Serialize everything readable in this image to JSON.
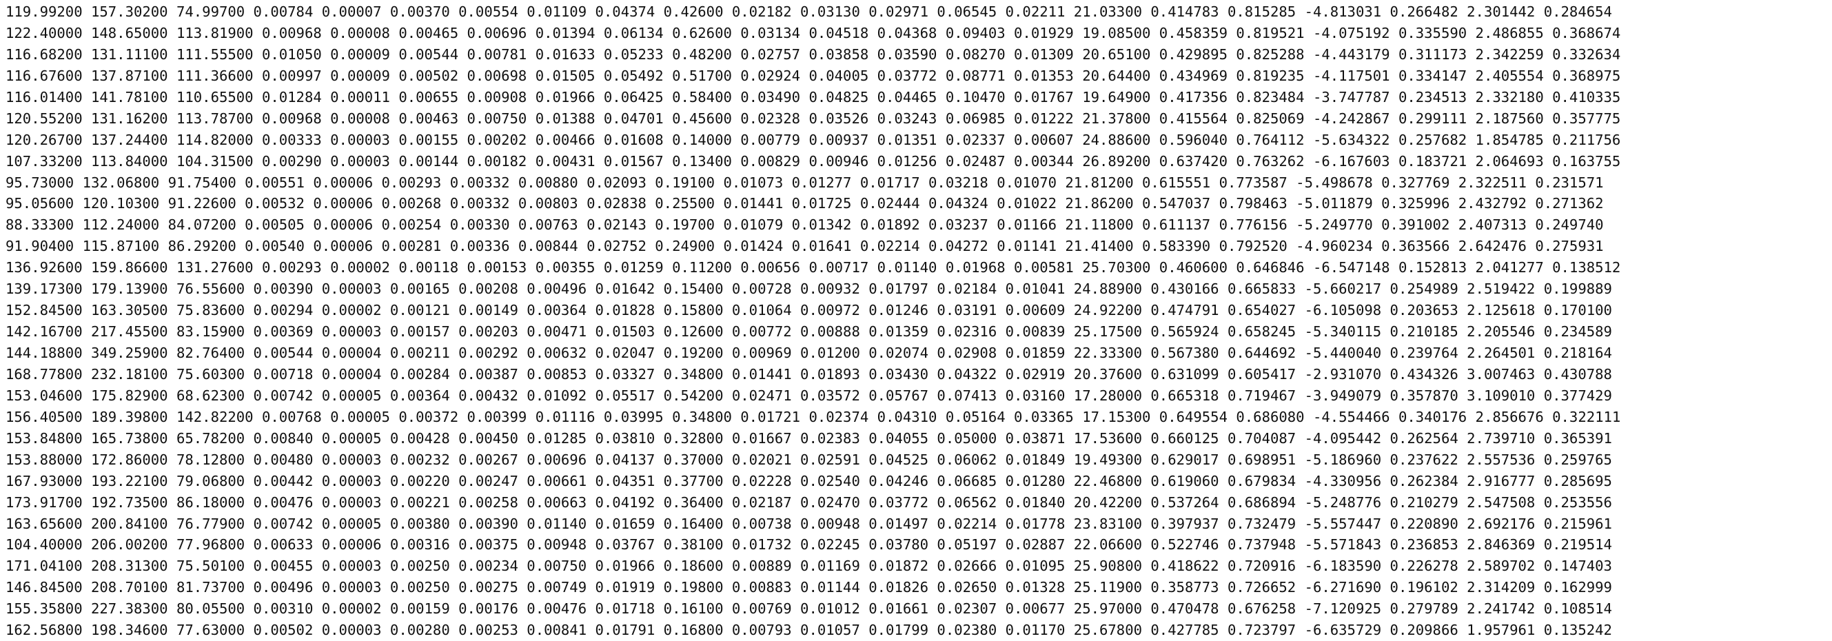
{
  "document": {
    "rows": [
      "119.99200 157.30200 74.99700 0.00784 0.00007 0.00370 0.00554 0.01109 0.04374 0.42600 0.02182 0.03130 0.02971 0.06545 0.02211 21.03300 0.414783 0.815285 -4.813031 0.266482 2.301442 0.284654",
      "122.40000 148.65000 113.81900 0.00968 0.00008 0.00465 0.00696 0.01394 0.06134 0.62600 0.03134 0.04518 0.04368 0.09403 0.01929 19.08500 0.458359 0.819521 -4.075192 0.335590 2.486855 0.368674",
      "116.68200 131.11100 111.55500 0.01050 0.00009 0.00544 0.00781 0.01633 0.05233 0.48200 0.02757 0.03858 0.03590 0.08270 0.01309 20.65100 0.429895 0.825288 -4.443179 0.311173 2.342259 0.332634",
      "116.67600 137.87100 111.36600 0.00997 0.00009 0.00502 0.00698 0.01505 0.05492 0.51700 0.02924 0.04005 0.03772 0.08771 0.01353 20.64400 0.434969 0.819235 -4.117501 0.334147 2.405554 0.368975",
      "116.01400 141.78100 110.65500 0.01284 0.00011 0.00655 0.00908 0.01966 0.06425 0.58400 0.03490 0.04825 0.04465 0.10470 0.01767 19.64900 0.417356 0.823484 -3.747787 0.234513 2.332180 0.410335",
      "120.55200 131.16200 113.78700 0.00968 0.00008 0.00463 0.00750 0.01388 0.04701 0.45600 0.02328 0.03526 0.03243 0.06985 0.01222 21.37800 0.415564 0.825069 -4.242867 0.299111 2.187560 0.357775",
      "120.26700 137.24400 114.82000 0.00333 0.00003 0.00155 0.00202 0.00466 0.01608 0.14000 0.00779 0.00937 0.01351 0.02337 0.00607 24.88600 0.596040 0.764112 -5.634322 0.257682 1.854785 0.211756",
      "107.33200 113.84000 104.31500 0.00290 0.00003 0.00144 0.00182 0.00431 0.01567 0.13400 0.00829 0.00946 0.01256 0.02487 0.00344 26.89200 0.637420 0.763262 -6.167603 0.183721 2.064693 0.163755",
      "95.73000 132.06800 91.75400 0.00551 0.00006 0.00293 0.00332 0.00880 0.02093 0.19100 0.01073 0.01277 0.01717 0.03218 0.01070 21.81200 0.615551 0.773587 -5.498678 0.327769 2.322511 0.231571",
      "95.05600 120.10300 91.22600 0.00532 0.00006 0.00268 0.00332 0.00803 0.02838 0.25500 0.01441 0.01725 0.02444 0.04324 0.01022 21.86200 0.547037 0.798463 -5.011879 0.325996 2.432792 0.271362",
      "88.33300 112.24000 84.07200 0.00505 0.00006 0.00254 0.00330 0.00763 0.02143 0.19700 0.01079 0.01342 0.01892 0.03237 0.01166 21.11800 0.611137 0.776156 -5.249770 0.391002 2.407313 0.249740",
      "91.90400 115.87100 86.29200 0.00540 0.00006 0.00281 0.00336 0.00844 0.02752 0.24900 0.01424 0.01641 0.02214 0.04272 0.01141 21.41400 0.583390 0.792520 -4.960234 0.363566 2.642476 0.275931",
      "136.92600 159.86600 131.27600 0.00293 0.00002 0.00118 0.00153 0.00355 0.01259 0.11200 0.00656 0.00717 0.01140 0.01968 0.00581 25.70300 0.460600 0.646846 -6.547148 0.152813 2.041277 0.138512",
      "139.17300 179.13900 76.55600 0.00390 0.00003 0.00165 0.00208 0.00496 0.01642 0.15400 0.00728 0.00932 0.01797 0.02184 0.01041 24.88900 0.430166 0.665833 -5.660217 0.254989 2.519422 0.199889",
      "152.84500 163.30500 75.83600 0.00294 0.00002 0.00121 0.00149 0.00364 0.01828 0.15800 0.01064 0.00972 0.01246 0.03191 0.00609 24.92200 0.474791 0.654027 -6.105098 0.203653 2.125618 0.170100",
      "142.16700 217.45500 83.15900 0.00369 0.00003 0.00157 0.00203 0.00471 0.01503 0.12600 0.00772 0.00888 0.01359 0.02316 0.00839 25.17500 0.565924 0.658245 -5.340115 0.210185 2.205546 0.234589",
      "144.18800 349.25900 82.76400 0.00544 0.00004 0.00211 0.00292 0.00632 0.02047 0.19200 0.00969 0.01200 0.02074 0.02908 0.01859 22.33300 0.567380 0.644692 -5.440040 0.239764 2.264501 0.218164",
      "168.77800 232.18100 75.60300 0.00718 0.00004 0.00284 0.00387 0.00853 0.03327 0.34800 0.01441 0.01893 0.03430 0.04322 0.02919 20.37600 0.631099 0.605417 -2.931070 0.434326 3.007463 0.430788",
      "153.04600 175.82900 68.62300 0.00742 0.00005 0.00364 0.00432 0.01092 0.05517 0.54200 0.02471 0.03572 0.05767 0.07413 0.03160 17.28000 0.665318 0.719467 -3.949079 0.357870 3.109010 0.377429",
      "156.40500 189.39800 142.82200 0.00768 0.00005 0.00372 0.00399 0.01116 0.03995 0.34800 0.01721 0.02374 0.04310 0.05164 0.03365 17.15300 0.649554 0.686080 -4.554466 0.340176 2.856676 0.322111",
      "153.84800 165.73800 65.78200 0.00840 0.00005 0.00428 0.00450 0.01285 0.03810 0.32800 0.01667 0.02383 0.04055 0.05000 0.03871 17.53600 0.660125 0.704087 -4.095442 0.262564 2.739710 0.365391",
      "153.88000 172.86000 78.12800 0.00480 0.00003 0.00232 0.00267 0.00696 0.04137 0.37000 0.02021 0.02591 0.04525 0.06062 0.01849 19.49300 0.629017 0.698951 -5.186960 0.237622 2.557536 0.259765",
      "167.93000 193.22100 79.06800 0.00442 0.00003 0.00220 0.00247 0.00661 0.04351 0.37700 0.02228 0.02540 0.04246 0.06685 0.01280 22.46800 0.619060 0.679834 -4.330956 0.262384 2.916777 0.285695",
      "173.91700 192.73500 86.18000 0.00476 0.00003 0.00221 0.00258 0.00663 0.04192 0.36400 0.02187 0.02470 0.03772 0.06562 0.01840 20.42200 0.537264 0.686894 -5.248776 0.210279 2.547508 0.253556",
      "163.65600 200.84100 76.77900 0.00742 0.00005 0.00380 0.00390 0.01140 0.01659 0.16400 0.00738 0.00948 0.01497 0.02214 0.01778 23.83100 0.397937 0.732479 -5.557447 0.220890 2.692176 0.215961",
      "104.40000 206.00200 77.96800 0.00633 0.00006 0.00316 0.00375 0.00948 0.03767 0.38100 0.01732 0.02245 0.03780 0.05197 0.02887 22.06600 0.522746 0.737948 -5.571843 0.236853 2.846369 0.219514",
      "171.04100 208.31300 75.50100 0.00455 0.00003 0.00250 0.00234 0.00750 0.01966 0.18600 0.00889 0.01169 0.01872 0.02666 0.01095 25.90800 0.418622 0.720916 -6.183590 0.226278 2.589702 0.147403",
      "146.84500 208.70100 81.73700 0.00496 0.00003 0.00250 0.00275 0.00749 0.01919 0.19800 0.00883 0.01144 0.01826 0.02650 0.01328 25.11900 0.358773 0.726652 -6.271690 0.196102 2.314209 0.162999",
      "155.35800 227.38300 80.05500 0.00310 0.00002 0.00159 0.00176 0.00476 0.01718 0.16100 0.00769 0.01012 0.01661 0.02307 0.00677 25.97000 0.470478 0.676258 -7.120925 0.279789 2.241742 0.108514",
      "162.56800 198.34600 77.63000 0.00502 0.00003 0.00280 0.00253 0.00841 0.01791 0.16800 0.00793 0.01057 0.01799 0.02380 0.01170 25.67800 0.427785 0.723797 -6.635729 0.209866 1.957961 0.135242"
    ]
  }
}
